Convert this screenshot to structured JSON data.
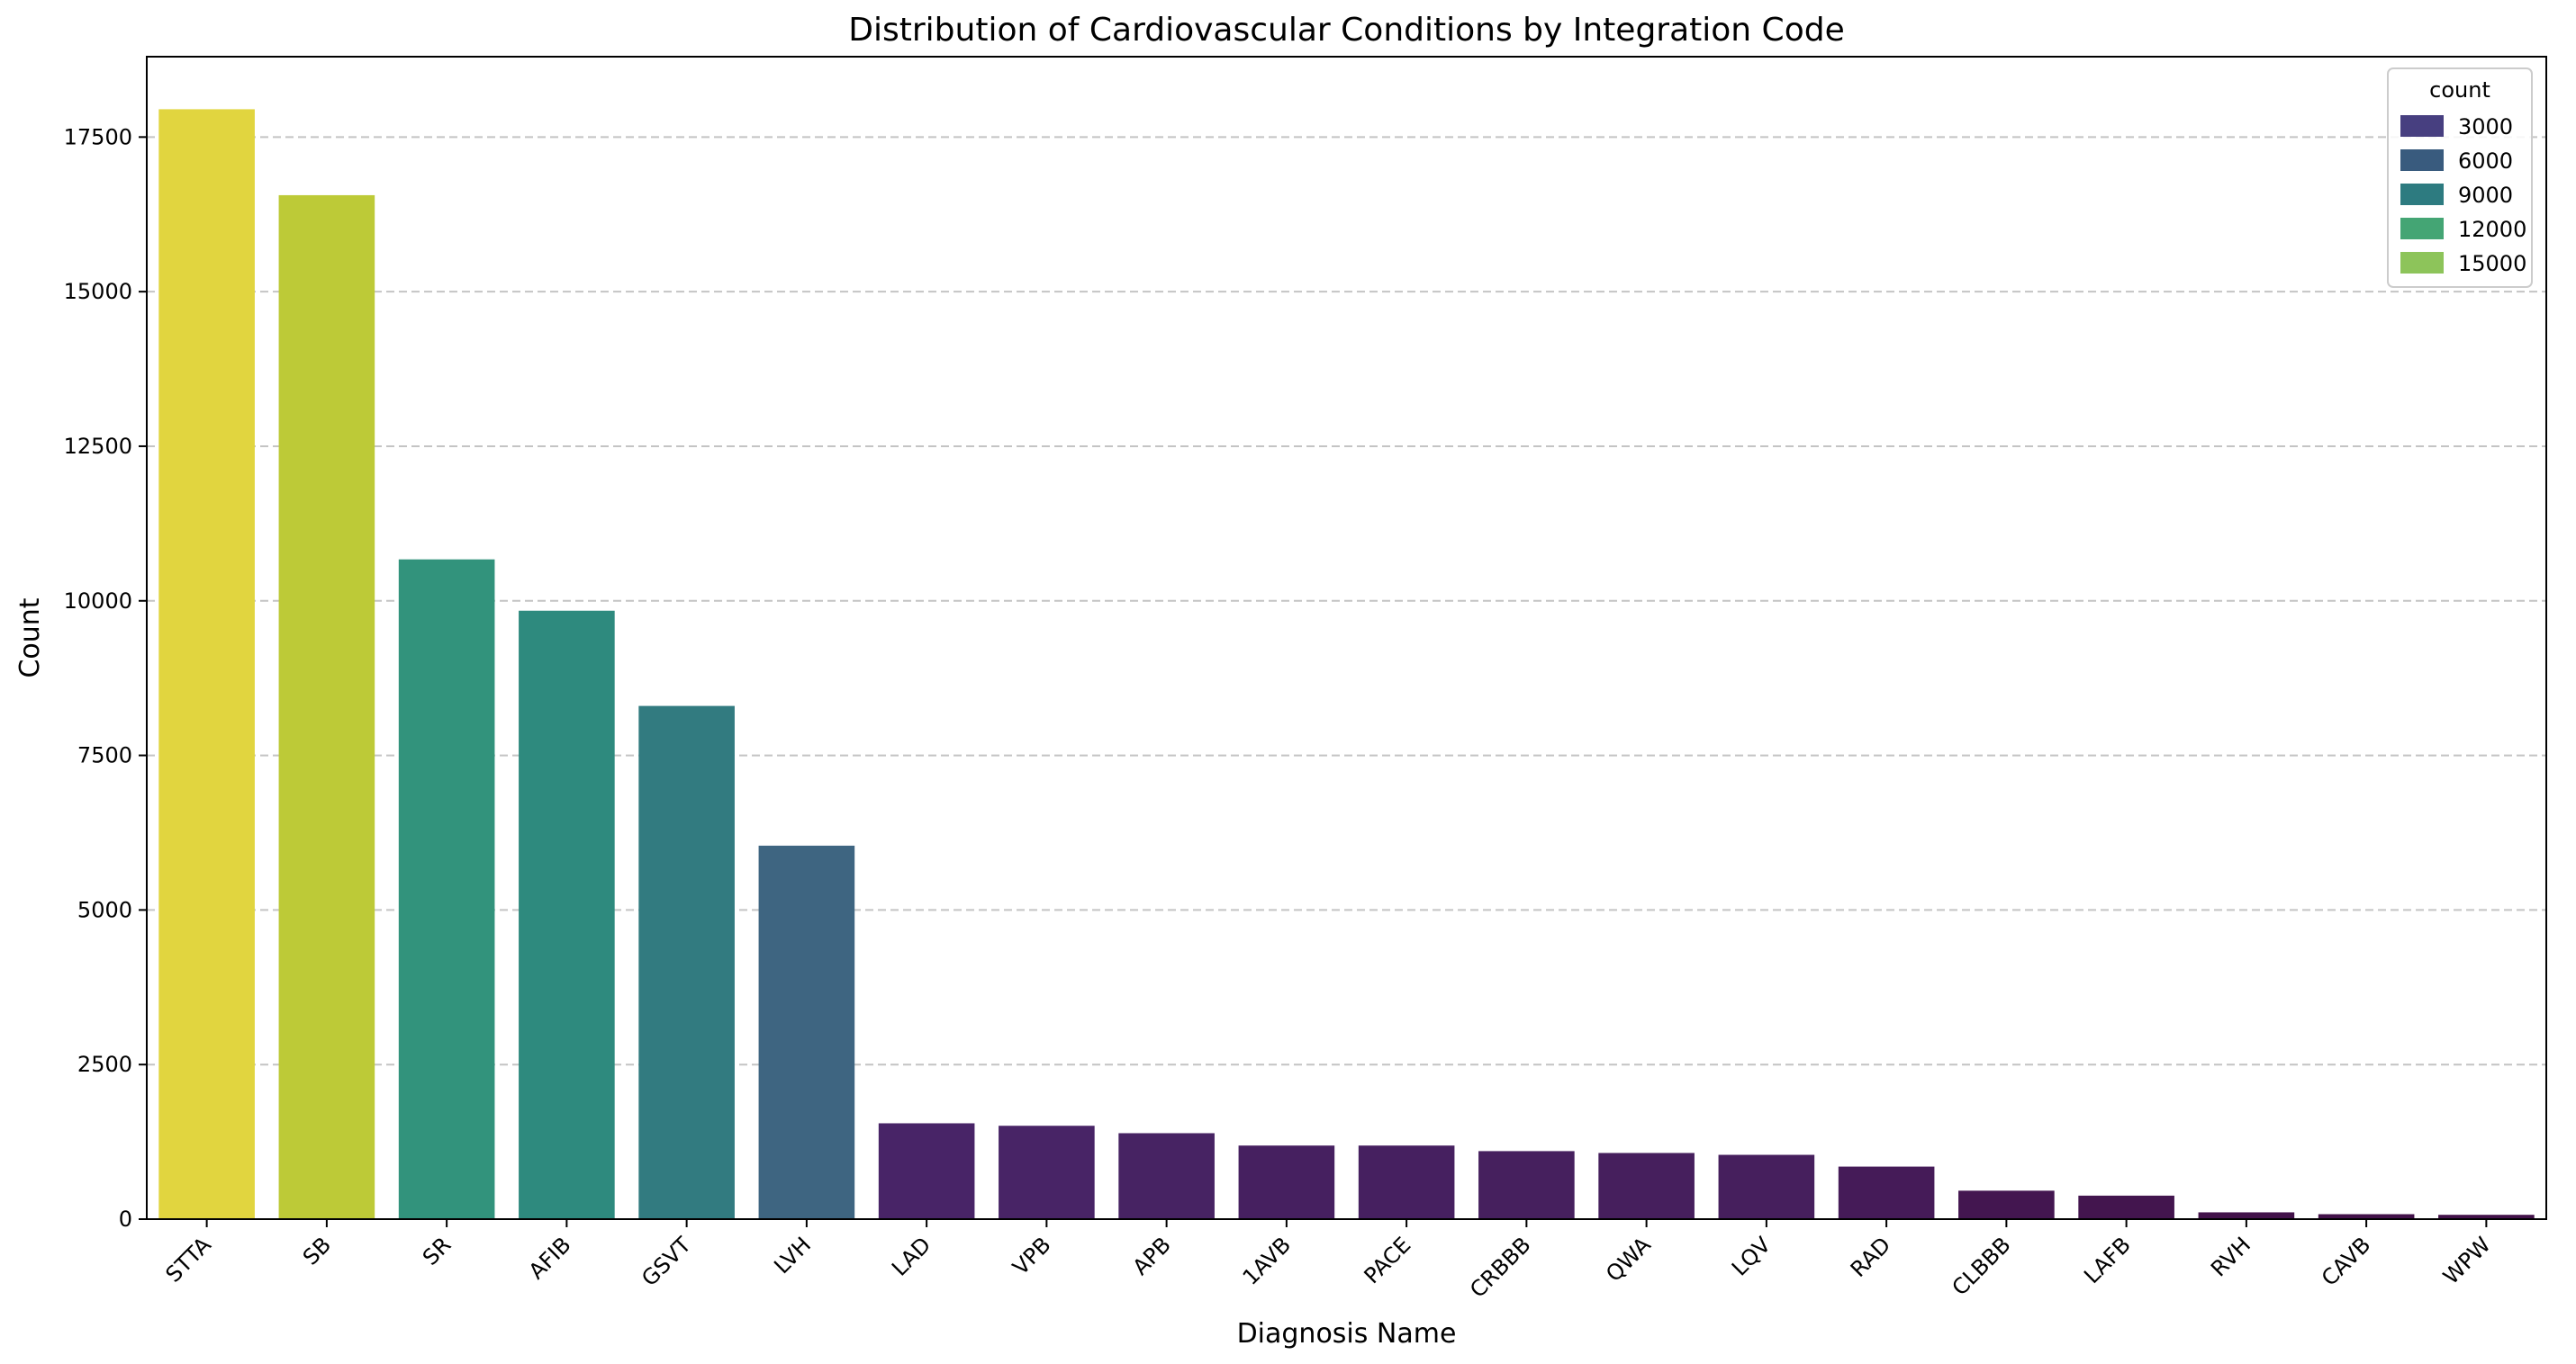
{
  "chart_data": {
    "type": "bar",
    "title": "Distribution of Cardiovascular Conditions by Integration Code",
    "xlabel": "Diagnosis Name",
    "ylabel": "Count",
    "ylim": [
      0,
      18800
    ],
    "yticks": [
      0,
      2500,
      5000,
      7500,
      10000,
      12500,
      15000,
      17500
    ],
    "grid": "horizontal dashed",
    "categories": [
      "STTA",
      "SB",
      "SR",
      "AFIB",
      "GSVT",
      "LVH",
      "LAD",
      "VPB",
      "APB",
      "1AVB",
      "PACE",
      "CRBBB",
      "QWA",
      "LQV",
      "RAD",
      "CLBBB",
      "LAFB",
      "RVH",
      "CAVB",
      "WPW"
    ],
    "values": [
      17950,
      16560,
      10670,
      9840,
      8300,
      6040,
      1550,
      1510,
      1390,
      1190,
      1190,
      1100,
      1070,
      1040,
      850,
      460,
      380,
      110,
      80,
      70
    ],
    "colors": [
      "#e1d53f",
      "#bdca37",
      "#32937c",
      "#2e8a7e",
      "#327b80",
      "#3e6581",
      "#482467",
      "#482466",
      "#472363",
      "#462060",
      "#462060",
      "#46205e",
      "#461f5d",
      "#461f5d",
      "#451b58",
      "#431650",
      "#43154e",
      "#42124a",
      "#421149",
      "#421149"
    ],
    "legend": {
      "title": "count",
      "position": "upper right",
      "entries": [
        {
          "label": "3000",
          "color": "#473f80"
        },
        {
          "label": "6000",
          "color": "#395b7e"
        },
        {
          "label": "9000",
          "color": "#2d7b80"
        },
        {
          "label": "12000",
          "color": "#44a574"
        },
        {
          "label": "15000",
          "color": "#8dc45a"
        }
      ]
    }
  }
}
